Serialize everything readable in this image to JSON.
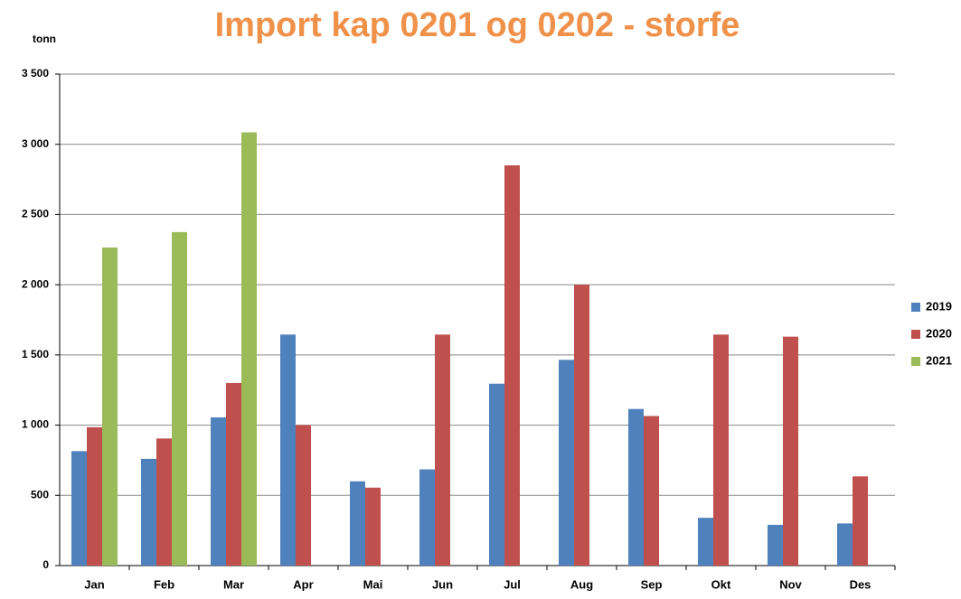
{
  "chart_data": {
    "type": "bar",
    "title": "Import kap 0201 og 0202 - storfe",
    "y_label": "tonn",
    "categories": [
      "Jan",
      "Feb",
      "Mar",
      "Apr",
      "Mai",
      "Jun",
      "Jul",
      "Aug",
      "Sep",
      "Okt",
      "Nov",
      "Des"
    ],
    "series": [
      {
        "name": "2019",
        "color": "#4f81bd",
        "values": [
          815,
          760,
          1055,
          1645,
          600,
          685,
          1295,
          1465,
          1115,
          340,
          290,
          300
        ]
      },
      {
        "name": "2020",
        "color": "#c0504d",
        "values": [
          985,
          905,
          1300,
          1000,
          555,
          1645,
          2850,
          2000,
          1065,
          1645,
          1630,
          635
        ]
      },
      {
        "name": "2021",
        "color": "#9bbb59",
        "values": [
          2265,
          2375,
          3085,
          null,
          null,
          null,
          null,
          null,
          null,
          null,
          null,
          null
        ]
      }
    ],
    "ylim": [
      0,
      3500
    ],
    "yticks": [
      0,
      500,
      {
        "value": 1000,
        "label": "1 000"
      },
      {
        "value": 1500,
        "label": "1 500"
      },
      {
        "value": 2000,
        "label": "2 000"
      },
      {
        "value": 2500,
        "label": "2 500"
      },
      {
        "value": 3000,
        "label": "3 000"
      },
      {
        "value": 3500,
        "label": "3 500"
      }
    ],
    "grid": true,
    "legend": "right"
  }
}
